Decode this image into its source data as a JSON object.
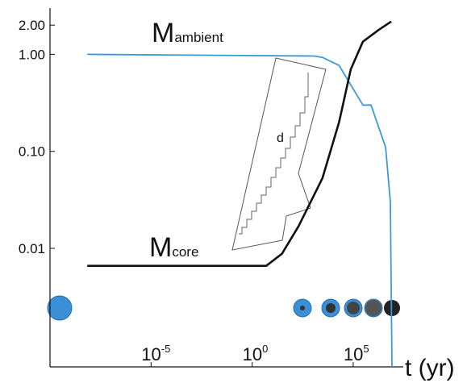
{
  "chart_data": {
    "type": "line",
    "xscale": "log",
    "yscale": "log",
    "xlim": [
      1e-10,
      30000000.0
    ],
    "ylim": [
      0.0006,
      3
    ],
    "xticks": [
      {
        "value": 1e-05,
        "label": "10",
        "exponent": "-5"
      },
      {
        "value": 1,
        "label": "10",
        "exponent": "0"
      },
      {
        "value": 100000,
        "label": "10",
        "exponent": "5"
      }
    ],
    "yticks": [
      {
        "value": 2,
        "label": "2.00"
      },
      {
        "value": 1,
        "label": "1.00"
      },
      {
        "value": 0.1,
        "label": "0.10"
      },
      {
        "value": 0.01,
        "label": "0.01"
      }
    ],
    "xlabel": "t (yr)",
    "annotations": {
      "ambient": {
        "symbol": "M",
        "subscript": "ambient"
      },
      "core": {
        "symbol": "M",
        "subscript": "core"
      },
      "inset": "d"
    },
    "series": [
      {
        "color": "#3a9ad9",
        "x": [
          7e-09,
          1200,
          3000,
          20000,
          300000,
          760000,
          4000000,
          6900000,
          8300000
        ],
        "values": [
          1,
          0.96,
          0.93,
          0.77,
          0.3,
          0.3,
          0.11,
          0.03,
          0.0006
        ]
      },
      {
        "color": "#111111",
        "x": [
          7e-09,
          5,
          30,
          200,
          3000,
          20000,
          76000,
          300000,
          1900000,
          7600000
        ],
        "values": [
          0.0066,
          0.0066,
          0.0088,
          0.017,
          0.053,
          0.2,
          0.7,
          1.35,
          1.8,
          2.18
        ]
      }
    ]
  }
}
